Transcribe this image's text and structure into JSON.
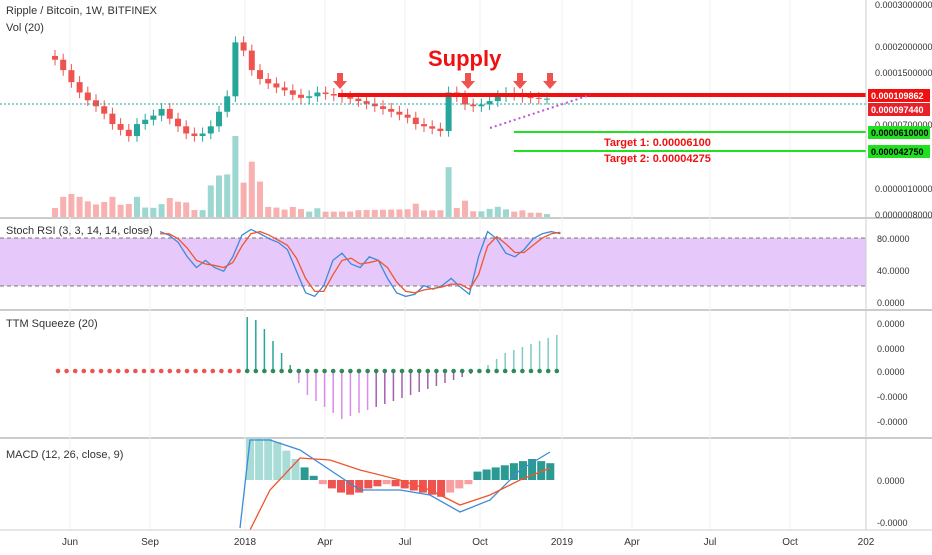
{
  "header": {
    "symbol_line": "Ripple / Bitcoin, 1W, BITFINEX",
    "volume_label": "Vol (20)"
  },
  "price_axis": {
    "ticks": [
      "0.0003000000",
      "0.0002000000",
      "0.0001500000",
      "0.0000700000",
      "0.0000010000",
      "0.0000008000"
    ],
    "markers": [
      {
        "label": "0.000109862",
        "color": "#f01010"
      },
      {
        "label": "0.000097440",
        "color": "#e8202a"
      },
      {
        "label": "0.0000610000",
        "color": "#20e020"
      },
      {
        "label": "0.000042750",
        "color": "#20e020"
      }
    ]
  },
  "annotations": {
    "supply_label": "Supply",
    "target1": "Target 1: 0.00006100",
    "target2": "Target 2: 0.00004275",
    "arrow_count": 4
  },
  "time_axis": [
    "Jun",
    "Sep",
    "2018",
    "Apr",
    "Jul",
    "Oct",
    "2019",
    "Apr",
    "Jul",
    "Oct",
    "202"
  ],
  "panels": {
    "stoch": {
      "title": "Stoch RSI (3, 3, 14, 14, close)",
      "ticks": [
        "80.0000",
        "40.0000",
        "0.0000"
      ]
    },
    "ttm": {
      "title": "TTM Squeeze (20)",
      "ticks": [
        "0.0000",
        "0.0000",
        "0.0000",
        "-0.0000",
        "-0.0000"
      ]
    },
    "macd": {
      "title": "MACD (12, 26, close, 9)",
      "ticks": [
        "0.0000",
        "-0.0000"
      ]
    }
  },
  "colors": {
    "up": "#26a69a",
    "down": "#ef5350",
    "supply": "#f01010",
    "target": "#20e020",
    "stoch_band": "#e7c8fb"
  },
  "chart_data": [
    {
      "type": "candlestick",
      "title": "Ripple / Bitcoin, 1W, BITFINEX",
      "x_ticks": [
        "Jun",
        "Sep",
        "2018",
        "Apr",
        "Jul",
        "Oct",
        "2019",
        "Apr",
        "Jul",
        "Oct",
        "202"
      ],
      "close_approx": [
        0.00016,
        0.00014,
        0.00012,
        0.000105,
        9.5e-05,
        8.8e-05,
        8e-05,
        7e-05,
        6.5e-05,
        6e-05,
        7e-05,
        7.4e-05,
        7.8e-05,
        8.5e-05,
        7.5e-05,
        6.8e-05,
        6.2e-05,
        6e-05,
        6.2e-05,
        6.8e-05,
        8.2e-05,
        0.0001,
        0.0002,
        0.00018,
        0.00014,
        0.000125,
        0.000118,
        0.000112,
        0.000108,
        0.000102,
        9.8e-05,
        0.0001,
        0.000105,
        0.000103,
        0.000101,
        9.9e-05,
        9.7e-05,
        9.4e-05,
        9.1e-05,
        8.8e-05,
        8.5e-05,
        8.2e-05,
        7.9e-05,
        7.6e-05,
        7e-05,
        6.8e-05,
        6.6e-05,
        6.4e-05,
        0.000105,
        0.0001,
        9e-05,
        8.8e-05,
        9e-05,
        9.4e-05,
        0.0001,
        0.000104,
        0.000102,
        9.9e-05,
        9.8e-05,
        9.7e-05,
        9.7e-05
      ],
      "horizontal_levels": [
        0.000109862,
        6.1e-05,
        4.275e-05
      ],
      "current_price": 9.744e-05
    },
    {
      "type": "line",
      "title": "Stoch RSI (3, 3, 14, 14, close)",
      "ylim": [
        0,
        100
      ],
      "bands": [
        20,
        80
      ],
      "series": [
        {
          "values": [
            95,
            90,
            80,
            60,
            45,
            55,
            45,
            40,
            60,
            90,
            98,
            92,
            85,
            80,
            70,
            40,
            10,
            5,
            20,
            55,
            65,
            50,
            45,
            60,
            55,
            30,
            10,
            5,
            8,
            20,
            15,
            20,
            30,
            18,
            8,
            60,
            95,
            85,
            65,
            60,
            70,
            85,
            92,
            95,
            92
          ]
        },
        {
          "values": [
            92,
            92,
            85,
            72,
            55,
            50,
            48,
            45,
            52,
            75,
            92,
            95,
            90,
            83,
            76,
            58,
            30,
            12,
            12,
            35,
            55,
            58,
            50,
            52,
            55,
            45,
            25,
            12,
            10,
            14,
            16,
            18,
            22,
            22,
            15,
            35,
            75,
            88,
            78,
            66,
            66,
            76,
            86,
            92,
            94
          ]
        }
      ]
    },
    {
      "type": "bar",
      "title": "TTM Squeeze (20)",
      "values": [
        0,
        0,
        0,
        0,
        0,
        0,
        0,
        0,
        0,
        0,
        0,
        0,
        0,
        0,
        0,
        0,
        0,
        0,
        0,
        0,
        0,
        0,
        0.9,
        0.85,
        0.7,
        0.5,
        0.3,
        0.1,
        -0.2,
        -0.4,
        -0.5,
        -0.6,
        -0.7,
        -0.8,
        -0.75,
        -0.7,
        -0.65,
        -0.6,
        -0.55,
        -0.5,
        -0.45,
        -0.4,
        -0.35,
        -0.3,
        -0.25,
        -0.2,
        -0.15,
        -0.1,
        -0.05,
        0,
        0.1,
        0.2,
        0.3,
        0.35,
        0.4,
        0.45,
        0.5,
        0.55,
        0.6
      ]
    },
    {
      "type": "bar",
      "title": "MACD (12, 26, close, 9)",
      "values": [
        1,
        1,
        1,
        0.9,
        0.7,
        0.5,
        0.3,
        0.1,
        -0.1,
        -0.2,
        -0.3,
        -0.35,
        -0.3,
        -0.2,
        -0.15,
        -0.1,
        -0.15,
        -0.2,
        -0.25,
        -0.3,
        -0.35,
        -0.4,
        -0.3,
        -0.2,
        -0.1,
        0.2,
        0.25,
        0.3,
        0.35,
        0.4,
        0.45,
        0.5,
        0.45,
        0.4
      ]
    }
  ]
}
